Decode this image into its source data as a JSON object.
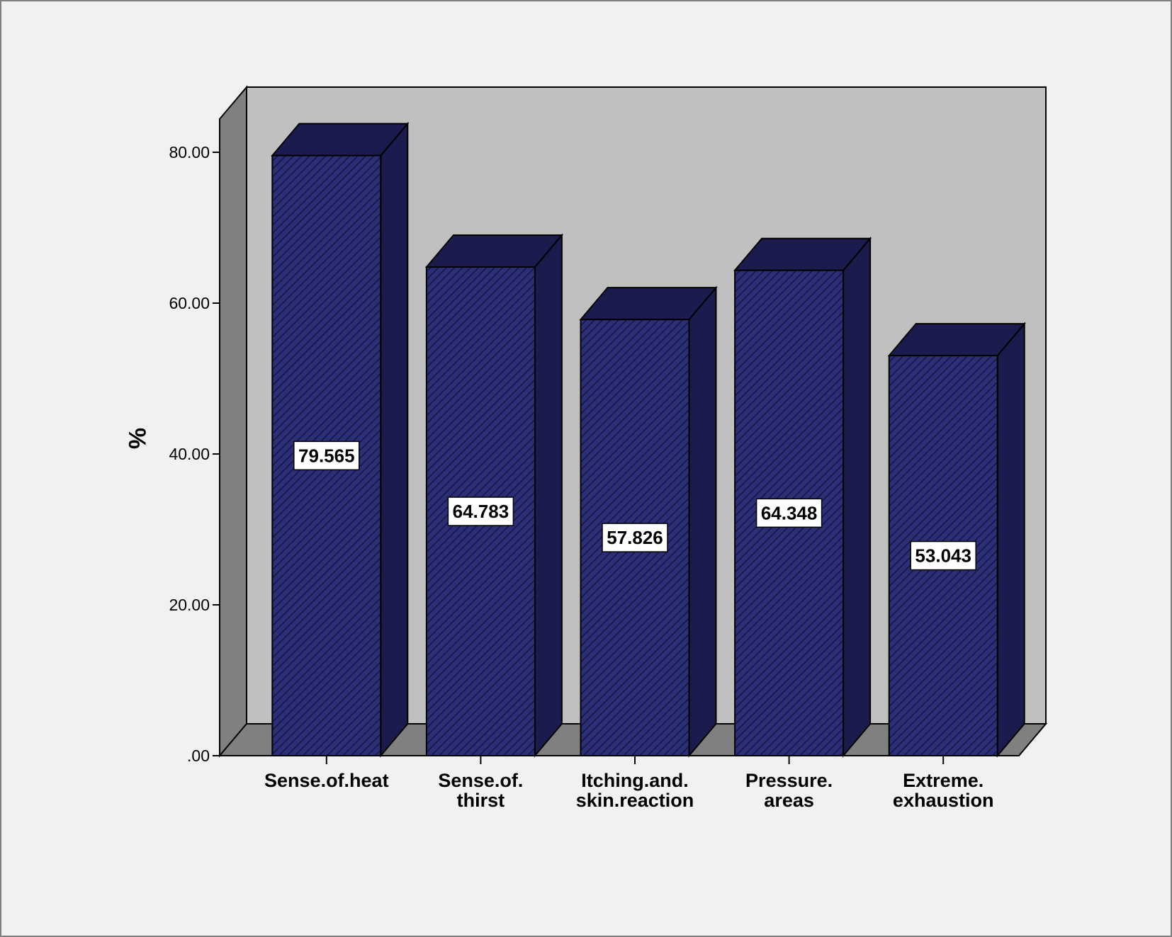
{
  "chart_data": {
    "type": "bar",
    "style": "3d-bar",
    "categories": [
      [
        "Sense.of.heat"
      ],
      [
        "Sense.of.",
        "thirst"
      ],
      [
        "Itching.and.",
        "skin.reaction"
      ],
      [
        "Pressure.",
        "areas"
      ],
      [
        "Extreme.",
        "exhaustion"
      ]
    ],
    "values": [
      79.565,
      64.783,
      57.826,
      64.348,
      53.043
    ],
    "value_labels": [
      "79.565",
      "64.783",
      "57.826",
      "64.348",
      "53.043"
    ],
    "xlabel": "",
    "ylabel": "%",
    "yticks": [
      ".00",
      "20.00",
      "40.00",
      "60.00",
      "80.00"
    ],
    "ylim": [
      0,
      80
    ],
    "grid": false,
    "legend": "none",
    "colors": {
      "bar_front": "#2b2f78",
      "bar_side": "#1b1b4d",
      "bar_hatch": "#14143c",
      "back_wall": "#c0c0c0",
      "left_wall": "#808080",
      "floor": "#808080",
      "background": "#f1f1f1"
    }
  }
}
